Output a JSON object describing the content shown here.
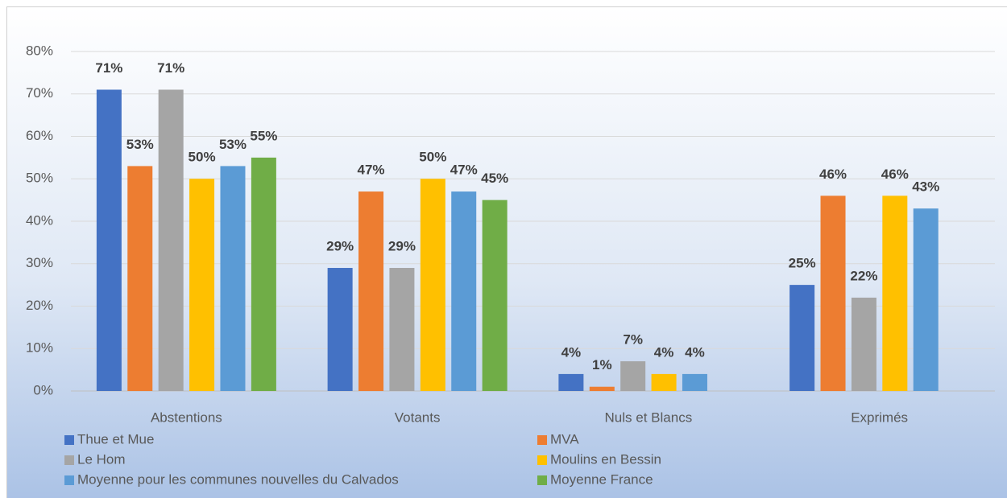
{
  "chart_data": {
    "type": "bar",
    "categories": [
      "Abstentions",
      "Votants",
      "Nuls et Blancs",
      "Exprimés"
    ],
    "series": [
      {
        "name": "Thue et Mue",
        "color": "#4472c4",
        "values": [
          71,
          29,
          4,
          25
        ],
        "value_labels": [
          "71%",
          "29%",
          "4%",
          "25%"
        ]
      },
      {
        "name": "MVA",
        "color": "#ed7d31",
        "values": [
          53,
          47,
          1,
          46
        ],
        "value_labels": [
          "53%",
          "47%",
          "1%",
          "46%"
        ]
      },
      {
        "name": "Le Hom",
        "color": "#a5a5a5",
        "values": [
          71,
          29,
          7,
          22
        ],
        "value_labels": [
          "71%",
          "29%",
          "7%",
          "22%"
        ]
      },
      {
        "name": "Moulins en Bessin",
        "color": "#ffc000",
        "values": [
          50,
          50,
          4,
          46
        ],
        "value_labels": [
          "50%",
          "50%",
          "4%",
          "46%"
        ]
      },
      {
        "name": "Moyenne pour les communes nouvelles du Calvados",
        "color": "#5b9bd5",
        "values": [
          53,
          47,
          4,
          43
        ],
        "value_labels": [
          "53%",
          "47%",
          "4%",
          "43%"
        ]
      },
      {
        "name": "Moyenne France",
        "color": "#70ad47",
        "values": [
          55,
          45,
          null,
          null
        ],
        "value_labels": [
          "55%",
          "45%",
          null,
          null
        ]
      }
    ],
    "ylim": [
      0,
      80
    ],
    "yticks": [
      {
        "value": 0,
        "label": "0%"
      },
      {
        "value": 10,
        "label": "10%"
      },
      {
        "value": 20,
        "label": "20%"
      },
      {
        "value": 30,
        "label": "30%"
      },
      {
        "value": 40,
        "label": "40%"
      },
      {
        "value": 50,
        "label": "50%"
      },
      {
        "value": 60,
        "label": "60%"
      },
      {
        "value": 70,
        "label": "70%"
      },
      {
        "value": 80,
        "label": "80%"
      }
    ],
    "grid": true,
    "legend": "bottom"
  }
}
